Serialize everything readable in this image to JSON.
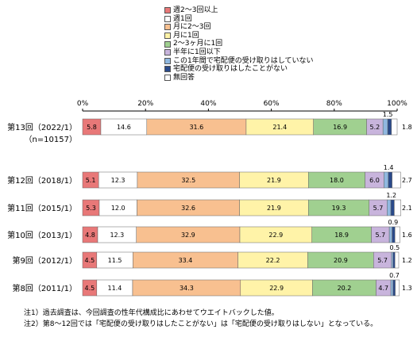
{
  "chart_data": {
    "type": "bar",
    "orientation": "horizontal",
    "stacked": true,
    "xlim": [
      0,
      100
    ],
    "x_ticks": [
      "0%",
      "20%",
      "40%",
      "60%",
      "80%",
      "100%"
    ],
    "grid": false,
    "legend_position": "top",
    "categories": [
      {
        "label": "第13回（2022/1）",
        "sublabel": "（n=10157）"
      },
      {
        "label": "第12回（2018/1）",
        "sublabel": ""
      },
      {
        "label": "第11回（2015/1）",
        "sublabel": ""
      },
      {
        "label": "第10回（2013/1）",
        "sublabel": ""
      },
      {
        "label": "第9回（2012/1）",
        "sublabel": ""
      },
      {
        "label": "第8回（2011/1）",
        "sublabel": ""
      }
    ],
    "series": [
      {
        "name": "週2～3回以上",
        "color": "#e87878",
        "values": [
          5.8,
          5.1,
          5.3,
          4.8,
          4.5,
          4.5
        ],
        "labels": [
          "5.8",
          "5.1",
          "5.3",
          "4.8",
          "4.5",
          "4.5"
        ]
      },
      {
        "name": "週1回",
        "color": "#ffffff",
        "values": [
          14.6,
          12.3,
          12.0,
          12.3,
          11.5,
          11.4
        ],
        "labels": [
          "14.6",
          "12.3",
          "12.0",
          "12.3",
          "11.5",
          "11.4"
        ]
      },
      {
        "name": "月に2～3回",
        "color": "#f8c090",
        "values": [
          31.6,
          32.5,
          32.6,
          32.9,
          33.4,
          34.3
        ],
        "labels": [
          "31.6",
          "32.5",
          "32.6",
          "32.9",
          "33.4",
          "34.3"
        ]
      },
      {
        "name": "月に1回",
        "color": "#fff3a8",
        "values": [
          21.4,
          21.9,
          21.9,
          22.9,
          22.2,
          22.9
        ],
        "labels": [
          "21.4",
          "21.9",
          "21.9",
          "22.9",
          "22.2",
          "22.9"
        ]
      },
      {
        "name": "2～3ヶ月に1回",
        "color": "#a0d090",
        "values": [
          16.9,
          18.0,
          19.3,
          18.9,
          20.9,
          20.2
        ],
        "labels": [
          "16.9",
          "18.0",
          "19.3",
          "18.9",
          "20.9",
          "20.2"
        ]
      },
      {
        "name": "半年に1回以下",
        "color": "#c8b4dc",
        "values": [
          5.2,
          6.0,
          5.7,
          5.7,
          5.7,
          4.7
        ],
        "labels": [
          "5.2",
          "6.0",
          "5.7",
          "5.7",
          "5.7",
          "4.7"
        ]
      },
      {
        "name": "この1年間で宅配便の受け取りはしていない",
        "color": "#90b8e0",
        "values": [
          1.5,
          1.4,
          1.2,
          0.9,
          0.5,
          0.7
        ],
        "labels": [
          "1.5",
          "1.4",
          "1.2",
          "0.9",
          "0.5",
          "0.7"
        ]
      },
      {
        "name": "宅配便の受け取りはしたことがない",
        "color": "#2a4a8a",
        "values": [
          1.2,
          1.2,
          1.1,
          0.9,
          0.6,
          0.7
        ],
        "labels": [
          "",
          "",
          "",
          "",
          "",
          ""
        ]
      },
      {
        "name": "無回答",
        "color": "#ffffff",
        "values": [
          1.8,
          2.7,
          2.1,
          1.6,
          1.2,
          1.3
        ],
        "labels": [
          "1.8",
          "2.7",
          "2.1",
          "1.6",
          "1.2",
          "1.3"
        ]
      }
    ],
    "notes": [
      "注1）過去調査は、今回調査の性年代構成比にあわせてウエイトバックした値。",
      "注2）第8～12回では「宅配便の受け取りはしたことがない」は「宅配便の受け取りはしない」となっている。"
    ]
  }
}
